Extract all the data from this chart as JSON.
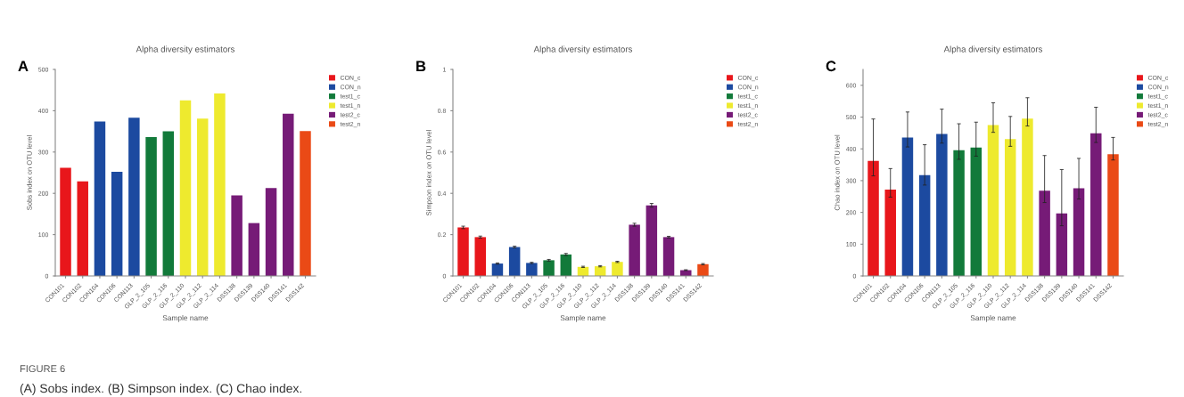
{
  "chart_data": [
    {
      "type": "bar",
      "title": "Alpha diversity estimators",
      "xlabel": "Sample name",
      "ylabel": "Sobs index on OTU level",
      "stacked": true,
      "legend": "top right",
      "ylim": [
        0,
        500
      ],
      "yticks": [
        0,
        100,
        200,
        300,
        400,
        500
      ],
      "grid": false,
      "categories": [
        "CON101",
        "CON102",
        "CON104",
        "CON106",
        "CON113",
        "GLP_2_105",
        "GLP_2_116",
        "GLP_2_110",
        "GLP_2_112",
        "GLP_2_114",
        "DSS138",
        "DSS139",
        "DSS140",
        "DSS141",
        "DSS142"
      ],
      "series": [
        {
          "name": "CON_c",
          "color": "#e8161b",
          "values": [
            262,
            229,
            null,
            null,
            null,
            null,
            null,
            null,
            null,
            null,
            null,
            null,
            null,
            null,
            null
          ]
        },
        {
          "name": "CON_n",
          "color": "#1c4aa0",
          "values": [
            null,
            null,
            374,
            252,
            383,
            null,
            null,
            null,
            null,
            null,
            null,
            null,
            null,
            null,
            null
          ]
        },
        {
          "name": "test1_c",
          "color": "#127a3a",
          "values": [
            null,
            null,
            null,
            null,
            null,
            336,
            350,
            null,
            null,
            null,
            null,
            null,
            null,
            null,
            null
          ]
        },
        {
          "name": "test1_n",
          "color": "#eeea2e",
          "values": [
            null,
            null,
            null,
            null,
            null,
            null,
            null,
            425,
            381,
            442,
            null,
            null,
            null,
            null,
            null
          ]
        },
        {
          "name": "test2_c",
          "color": "#761b77",
          "values": [
            null,
            null,
            null,
            null,
            null,
            null,
            null,
            null,
            null,
            null,
            195,
            128,
            213,
            393,
            null
          ]
        },
        {
          "name": "test2_n",
          "color": "#ea4a16",
          "values": [
            null,
            null,
            null,
            null,
            null,
            null,
            null,
            null,
            null,
            null,
            null,
            null,
            null,
            null,
            351
          ]
        }
      ],
      "annotations": [
        "A",
        "FIGURE 6",
        "(A) Sobs index. (B) Simpson index. (C) Chao index."
      ]
    },
    {
      "type": "bar",
      "title": "Alpha diversity estimators",
      "xlabel": "Sample name",
      "ylabel": "Simpson index on OTU level",
      "stacked": true,
      "legend": "top right",
      "ylim": [
        0,
        1
      ],
      "yticks": [
        0,
        0.2,
        0.4,
        0.6,
        0.8,
        1
      ],
      "grid": false,
      "categories": [
        "CON101",
        "CON102",
        "CON104",
        "CON106",
        "CON113",
        "GLP_2_105",
        "GLP_2_116",
        "GLP_2_110",
        "GLP_2_112",
        "GLP_2_114",
        "DSS138",
        "DSS139",
        "DSS140",
        "DSS141",
        "DSS142"
      ],
      "series": [
        {
          "name": "CON_c",
          "color": "#e8161b",
          "values": [
            0.235,
            0.188,
            null,
            null,
            null,
            null,
            null,
            null,
            null,
            null,
            null,
            null,
            null,
            null,
            null
          ],
          "errors": [
            0.006,
            0.005,
            null,
            null,
            null,
            null,
            null,
            null,
            null,
            null,
            null,
            null,
            null,
            null,
            null
          ]
        },
        {
          "name": "CON_n",
          "color": "#1c4aa0",
          "values": [
            null,
            null,
            0.06,
            0.14,
            0.063,
            null,
            null,
            null,
            null,
            null,
            null,
            null,
            null,
            null,
            null
          ],
          "errors": [
            null,
            null,
            0.003,
            0.004,
            0.003,
            null,
            null,
            null,
            null,
            null,
            null,
            null,
            null,
            null,
            null
          ]
        },
        {
          "name": "test1_c",
          "color": "#127a3a",
          "values": [
            null,
            null,
            null,
            null,
            null,
            0.076,
            0.104,
            null,
            null,
            null,
            null,
            null,
            null,
            null,
            null
          ],
          "errors": [
            null,
            null,
            null,
            null,
            null,
            0.004,
            0.005,
            null,
            null,
            null,
            null,
            null,
            null,
            null,
            null
          ]
        },
        {
          "name": "test1_n",
          "color": "#eeea2e",
          "values": [
            null,
            null,
            null,
            null,
            null,
            null,
            null,
            0.044,
            0.047,
            0.068,
            null,
            null,
            null,
            null,
            null
          ],
          "errors": [
            null,
            null,
            null,
            null,
            null,
            null,
            null,
            0.003,
            0.003,
            0.003,
            null,
            null,
            null,
            null,
            null
          ]
        },
        {
          "name": "test2_c",
          "color": "#761b77",
          "values": [
            null,
            null,
            null,
            null,
            null,
            null,
            null,
            null,
            null,
            null,
            0.248,
            0.342,
            0.188,
            0.028,
            null
          ],
          "errors": [
            null,
            null,
            null,
            null,
            null,
            null,
            null,
            null,
            null,
            null,
            0.007,
            0.009,
            0.004,
            0.002,
            null
          ]
        },
        {
          "name": "test2_n",
          "color": "#ea4a16",
          "values": [
            null,
            null,
            null,
            null,
            null,
            null,
            null,
            null,
            null,
            null,
            null,
            null,
            null,
            null,
            0.057
          ],
          "errors": [
            null,
            null,
            null,
            null,
            null,
            null,
            null,
            null,
            null,
            null,
            null,
            null,
            null,
            null,
            0.003
          ]
        }
      ],
      "annotations": [
        "B"
      ]
    },
    {
      "type": "bar",
      "title": "Alpha diversity estimators",
      "xlabel": "Sample name",
      "ylabel": "Chao index on OTU level",
      "stacked": true,
      "legend": "top right",
      "ylim": [
        0,
        650
      ],
      "yticks": [
        0,
        100,
        200,
        300,
        400,
        500,
        600
      ],
      "grid": false,
      "categories": [
        "CON101",
        "CON102",
        "CON104",
        "CON106",
        "CON113",
        "GLP_2_105",
        "GLP_2_116",
        "GLP_2_110",
        "GLP_2_112",
        "GLP_2_114",
        "DSS138",
        "DSS139",
        "DSS140",
        "DSS141",
        "DSS142"
      ],
      "series": [
        {
          "name": "CON_c",
          "color": "#e8161b",
          "values": [
            362,
            272,
            null,
            null,
            null,
            null,
            null,
            null,
            null,
            null,
            null,
            null,
            null,
            null,
            null
          ],
          "errors": [
            [
              315,
              494
            ],
            [
              248,
              338
            ],
            null,
            null,
            null,
            null,
            null,
            null,
            null,
            null,
            null,
            null,
            null,
            null,
            null
          ]
        },
        {
          "name": "CON_n",
          "color": "#1c4aa0",
          "values": [
            null,
            null,
            436,
            317,
            447,
            null,
            null,
            null,
            null,
            null,
            null,
            null,
            null,
            null,
            null
          ],
          "errors": [
            null,
            null,
            [
              406,
              516
            ],
            [
              286,
              413
            ],
            [
              418,
              525
            ],
            null,
            null,
            null,
            null,
            null,
            null,
            null,
            null,
            null,
            null
          ]
        },
        {
          "name": "test1_c",
          "color": "#127a3a",
          "values": [
            null,
            null,
            null,
            null,
            null,
            396,
            404,
            null,
            null,
            null,
            null,
            null,
            null,
            null,
            null
          ],
          "errors": [
            null,
            null,
            null,
            null,
            null,
            [
              367,
              479
            ],
            [
              377,
              484
            ],
            null,
            null,
            null,
            null,
            null,
            null,
            null,
            null
          ]
        },
        {
          "name": "test1_n",
          "color": "#eeea2e",
          "values": [
            null,
            null,
            null,
            null,
            null,
            null,
            null,
            475,
            431,
            495,
            null,
            null,
            null,
            null,
            null
          ],
          "errors": [
            null,
            null,
            null,
            null,
            null,
            null,
            null,
            [
              452,
              545
            ],
            [
              408,
              502
            ],
            [
              472,
              561
            ],
            null,
            null,
            null,
            null,
            null
          ]
        },
        {
          "name": "test2_c",
          "color": "#761b77",
          "values": [
            null,
            null,
            null,
            null,
            null,
            null,
            null,
            null,
            null,
            null,
            268,
            197,
            276,
            449,
            null
          ],
          "errors": [
            null,
            null,
            null,
            null,
            null,
            null,
            null,
            null,
            null,
            null,
            [
              231,
              379
            ],
            [
              158,
              335
            ],
            [
              242,
              370
            ],
            [
              420,
              531
            ],
            null
          ]
        },
        {
          "name": "test2_n",
          "color": "#ea4a16",
          "values": [
            null,
            null,
            null,
            null,
            null,
            null,
            null,
            null,
            null,
            null,
            null,
            null,
            null,
            null,
            383
          ],
          "errors": [
            null,
            null,
            null,
            null,
            null,
            null,
            null,
            null,
            null,
            null,
            null,
            null,
            null,
            null,
            [
              365,
              436
            ]
          ]
        }
      ],
      "annotations": [
        "C"
      ]
    }
  ]
}
